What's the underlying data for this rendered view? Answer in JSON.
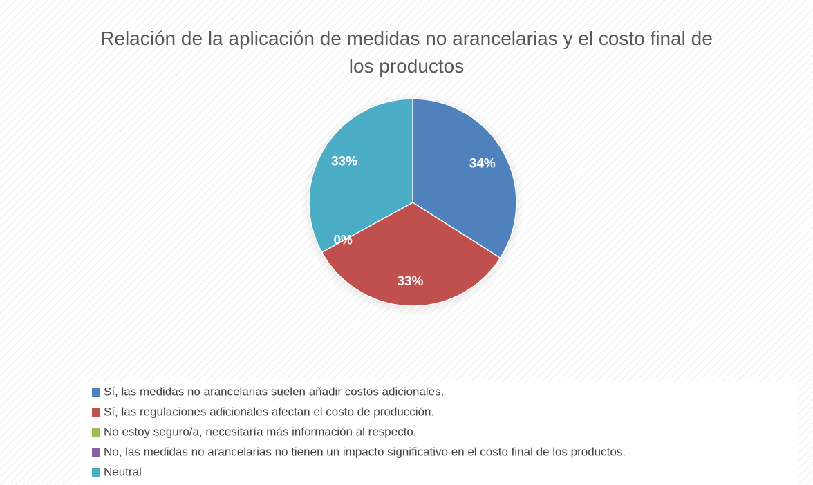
{
  "chart_data": {
    "type": "pie",
    "title": "Relación de la aplicación de medidas no arancelarias y el costo final de los productos",
    "categories": [
      "Sí, las medidas no arancelarias suelen añadir costos adicionales.",
      "Sí, las regulaciones adicionales afectan el costo de producción.",
      "No estoy seguro/a, necesitaría más información al respecto.",
      "No, las medidas no arancelarias no tienen un impacto significativo en el costo final de los productos.",
      "Neutral"
    ],
    "values": [
      34,
      33,
      0,
      0,
      33
    ],
    "value_labels": [
      "34%",
      "33%",
      "0%",
      null,
      "33%"
    ],
    "colors": [
      "#4f81bd",
      "#c0504d",
      "#9bbb59",
      "#8064a2",
      "#4bacc6"
    ],
    "legend": "bottom"
  }
}
